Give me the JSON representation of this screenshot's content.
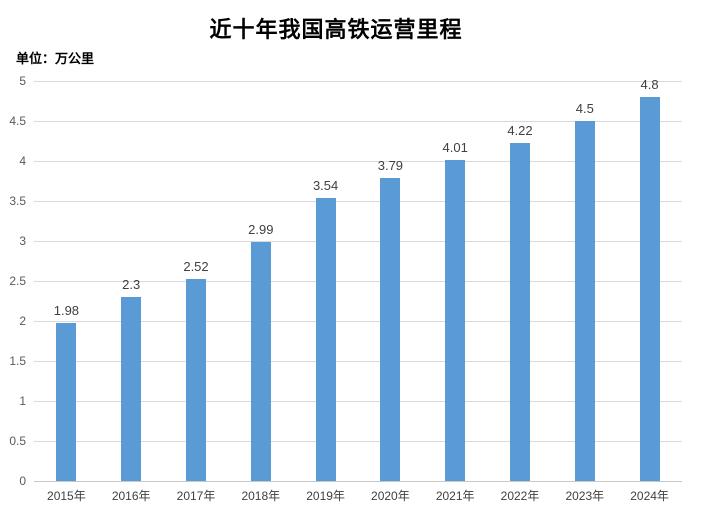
{
  "chart_data": {
    "type": "bar",
    "title": "近十年我国高铁运营里程",
    "unit_label": "单位：万公里",
    "categories": [
      "2015年",
      "2016年",
      "2017年",
      "2018年",
      "2019年",
      "2020年",
      "2021年",
      "2022年",
      "2023年",
      "2024年"
    ],
    "values": [
      1.98,
      2.3,
      2.52,
      2.99,
      3.54,
      3.79,
      4.01,
      4.22,
      4.5,
      4.8
    ],
    "value_labels": [
      "1.98",
      "2.3",
      "2.52",
      "2.99",
      "3.54",
      "3.79",
      "4.01",
      "4.22",
      "4.5",
      "4.8"
    ],
    "xlabel": "",
    "ylabel": "",
    "ylim": [
      0,
      5
    ],
    "ytick_step": 0.5,
    "ytick_labels": [
      "0",
      "0.5",
      "1",
      "1.5",
      "2",
      "2.5",
      "3",
      "3.5",
      "4",
      "4.5",
      "5"
    ],
    "grid": true,
    "legend": "none",
    "colors": {
      "bar": "#5B9BD5",
      "gridline": "#D9D9D9",
      "axis_line": "#C9C9C9",
      "ytick_label": "#595959",
      "xtick_label": "#404040",
      "value_label": "#404040",
      "title": "#000000",
      "background": "#FFFFFF"
    }
  }
}
